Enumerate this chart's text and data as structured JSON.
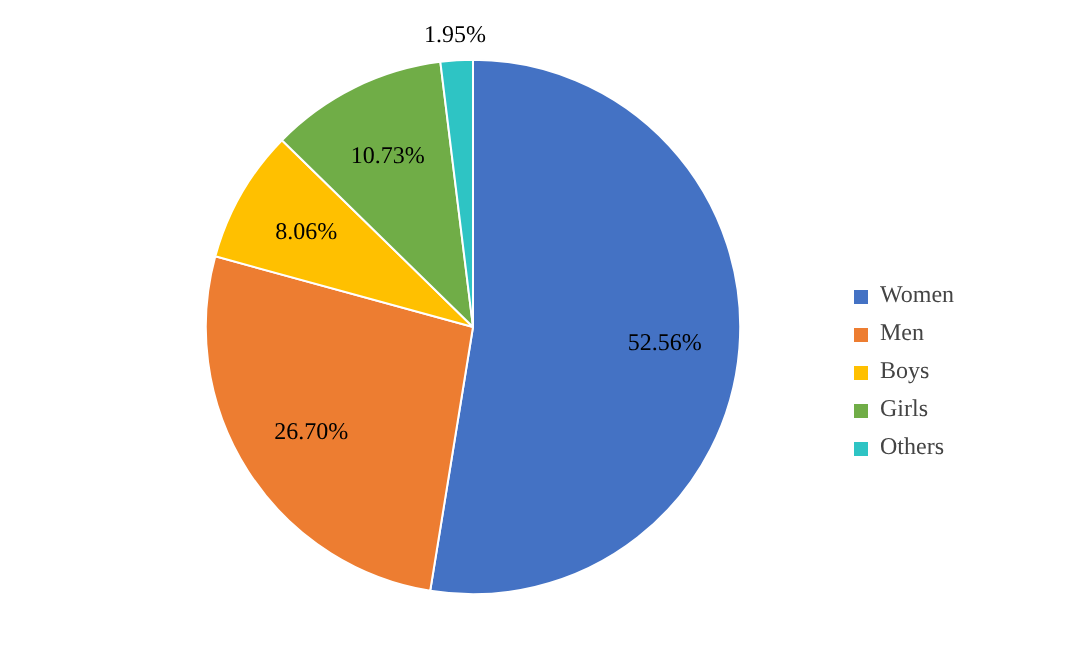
{
  "chart_data": {
    "type": "pie",
    "categories": [
      "Women",
      "Men",
      "Boys",
      "Girls",
      "Others"
    ],
    "values": [
      52.56,
      26.7,
      8.06,
      10.73,
      1.95
    ],
    "value_labels": [
      "52.56%",
      "26.70%",
      "8.06%",
      "10.73%",
      "1.95%"
    ],
    "colors": [
      "#4472c4",
      "#ed7d31",
      "#ffc000",
      "#70ad47",
      "#2ec4c4"
    ],
    "legend": "right"
  }
}
